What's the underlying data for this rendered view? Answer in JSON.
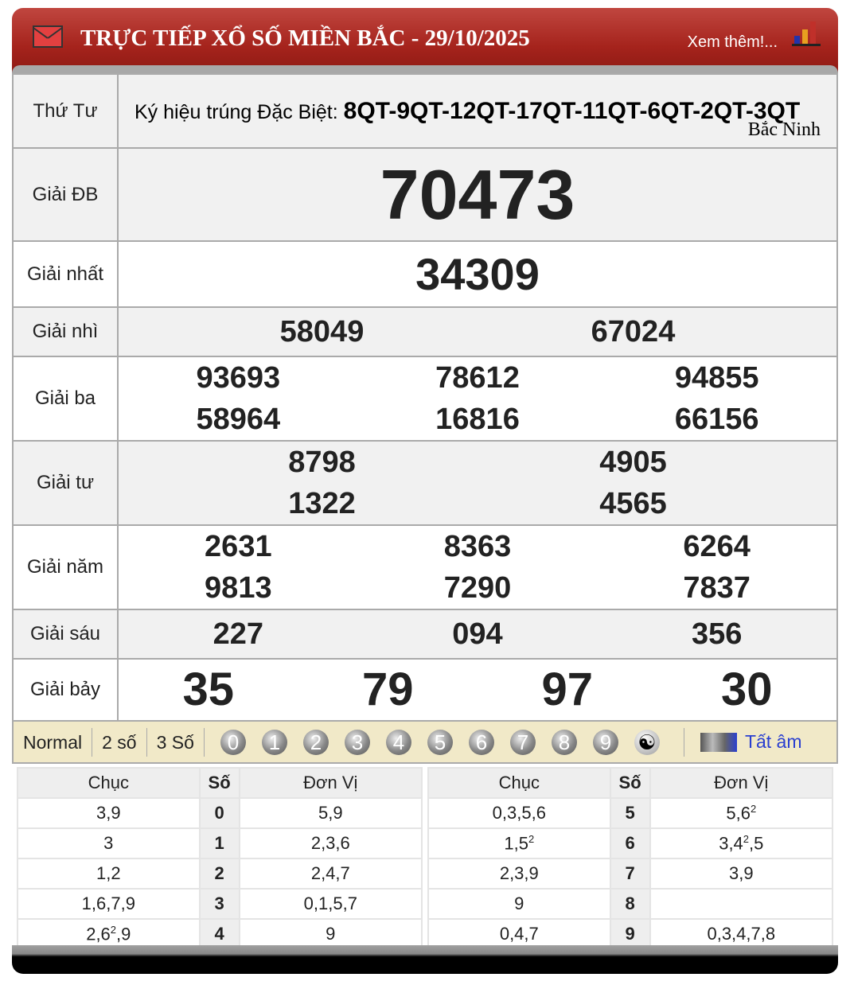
{
  "header": {
    "title": "TRỰC TIẾP XỔ SỐ MIỀN BẮC - 29/10/2025",
    "more": "Xem thêm!...",
    "icons": [
      "mail-icon",
      "bar-chart-icon"
    ]
  },
  "day": "Thứ Tư",
  "kyhieu": {
    "label": "Ký hiệu trúng Đặc Biệt:",
    "value": "8QT-9QT-12QT-17QT-11QT-6QT-2QT-3QT",
    "province": "Bắc Ninh"
  },
  "prizes": [
    {
      "label": "Giải ĐB",
      "numbers": [
        "70473"
      ]
    },
    {
      "label": "Giải nhất",
      "numbers": [
        "34309"
      ]
    },
    {
      "label": "Giải nhì",
      "numbers": [
        "58049",
        "67024"
      ]
    },
    {
      "label": "Giải ba",
      "numbers": [
        "93693",
        "78612",
        "94855",
        "58964",
        "16816",
        "66156"
      ]
    },
    {
      "label": "Giải tư",
      "numbers": [
        "8798",
        "4905",
        "1322",
        "4565"
      ]
    },
    {
      "label": "Giải năm",
      "numbers": [
        "2631",
        "8363",
        "6264",
        "9813",
        "7290",
        "7837"
      ]
    },
    {
      "label": "Giải sáu",
      "numbers": [
        "227",
        "094",
        "356"
      ]
    },
    {
      "label": "Giải bảy",
      "numbers": [
        "35",
        "79",
        "97",
        "30"
      ]
    }
  ],
  "toolbar": {
    "modes": [
      "Normal",
      "2 số",
      "3 Số"
    ],
    "digits": [
      "0",
      "1",
      "2",
      "3",
      "4",
      "5",
      "6",
      "7",
      "8",
      "9"
    ],
    "yinyang": "☯",
    "tat_am": "Tất âm"
  },
  "loto": {
    "headers": [
      "Chục",
      "Số",
      "Đơn Vị"
    ],
    "left": [
      {
        "chuc": {
          "t": "3,9"
        },
        "so": "0",
        "dv": {
          "t": "5,9"
        }
      },
      {
        "chuc": {
          "t": "3"
        },
        "so": "1",
        "dv": {
          "t": "2,3,6"
        }
      },
      {
        "chuc": {
          "t": "1,2"
        },
        "so": "2",
        "dv": {
          "t": "2,4,7"
        }
      },
      {
        "chuc": {
          "t": "1,6,7,9"
        },
        "so": "3",
        "dv": {
          "t": "0,1,5,7"
        }
      },
      {
        "chuc": {
          "t": "2,6",
          "sup": "2",
          "after": ",9"
        },
        "so": "4",
        "dv": {
          "t": "9"
        }
      }
    ],
    "right": [
      {
        "chuc": {
          "t": "0,3,5,6"
        },
        "so": "5",
        "dv": {
          "t": "5,6",
          "sup": "2"
        }
      },
      {
        "chuc": {
          "t": "1,5",
          "sup": "2"
        },
        "so": "6",
        "dv": {
          "t": "3,4",
          "sup": "2",
          "after": ",5"
        }
      },
      {
        "chuc": {
          "t": "2,3,9"
        },
        "so": "7",
        "dv": {
          "t": "3,9"
        }
      },
      {
        "chuc": {
          "t": "9"
        },
        "so": "8",
        "dv": {
          "t": ""
        }
      },
      {
        "chuc": {
          "t": "0,4,7"
        },
        "so": "9",
        "dv": {
          "t": "0,3,4,7,8"
        }
      }
    ]
  }
}
